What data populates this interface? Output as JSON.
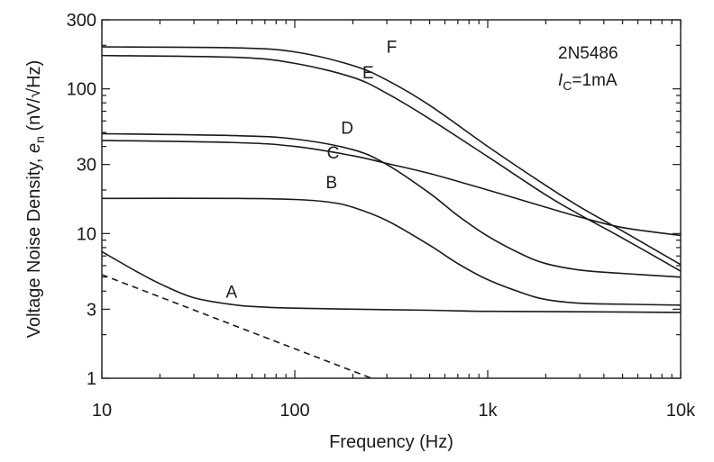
{
  "chart_data": {
    "type": "line",
    "xlabel": "Frequency (Hz)",
    "ylabel_main": "Voltage Noise Density, ",
    "ylabel_var": "e",
    "ylabel_sub": "n",
    "ylabel_unit": " (nV/√Hz)",
    "x_scale": "log",
    "y_scale": "log",
    "xlim": [
      10,
      10000
    ],
    "ylim": [
      1,
      300
    ],
    "x_ticks": [
      {
        "value": 10,
        "label": "10"
      },
      {
        "value": 100,
        "label": "100"
      },
      {
        "value": 1000,
        "label": "1k"
      },
      {
        "value": 10000,
        "label": "10k"
      }
    ],
    "y_ticks": [
      {
        "value": 1,
        "label": "1"
      },
      {
        "value": 3,
        "label": "3"
      },
      {
        "value": 10,
        "label": "10"
      },
      {
        "value": 30,
        "label": "30"
      },
      {
        "value": 100,
        "label": "100"
      },
      {
        "value": 300,
        "label": "300"
      }
    ],
    "annotation": {
      "part": "2N5486",
      "cond_var": "I",
      "cond_sub": "C",
      "cond_val": "=1mA"
    },
    "grid": false,
    "series": [
      {
        "name": "A",
        "style": "solid",
        "label_at": [
          47,
          3.6
        ],
        "x": [
          10,
          15,
          20,
          30,
          50,
          70,
          100,
          200,
          500,
          1000,
          3000,
          10000
        ],
        "y": [
          7.5,
          5.5,
          4.5,
          3.6,
          3.2,
          3.1,
          3.05,
          3.0,
          2.95,
          2.9,
          2.88,
          2.85
        ]
      },
      {
        "name": "B",
        "style": "solid",
        "label_at": [
          155,
          20.5
        ],
        "x": [
          10,
          50,
          100,
          150,
          200,
          300,
          500,
          700,
          1000,
          1500,
          2000,
          3000,
          5000,
          10000
        ],
        "y": [
          17.5,
          17.5,
          17.2,
          16.5,
          15.2,
          12.3,
          8.3,
          6.2,
          4.8,
          3.9,
          3.5,
          3.3,
          3.25,
          3.2
        ]
      },
      {
        "name": "C",
        "style": "solid",
        "label_at": [
          158,
          33
        ],
        "x": [
          10,
          50,
          100,
          200,
          300,
          500,
          1000,
          2000,
          3000,
          5000,
          10000
        ],
        "y": [
          44,
          42.5,
          40,
          34.5,
          30.5,
          26,
          20,
          15.2,
          13,
          11,
          9.7
        ]
      },
      {
        "name": "D",
        "style": "solid",
        "label_at": [
          187,
          49
        ],
        "x": [
          10,
          50,
          100,
          200,
          300,
          500,
          700,
          1000,
          1500,
          2000,
          3000,
          5000,
          10000
        ],
        "y": [
          49,
          47.5,
          45,
          38,
          30,
          19,
          13.3,
          9.6,
          7.2,
          6.2,
          5.6,
          5.3,
          5.0
        ]
      },
      {
        "name": "E",
        "style": "solid",
        "label_at": [
          240,
          118
        ],
        "x": [
          10,
          50,
          100,
          200,
          300,
          500,
          1000,
          2000,
          3000,
          5000,
          10000
        ],
        "y": [
          170,
          165,
          150,
          120,
          93,
          62,
          34,
          18.5,
          13.5,
          9.3,
          5.5
        ]
      },
      {
        "name": "F",
        "style": "solid",
        "label_at": [
          318,
          178
        ],
        "x": [
          10,
          50,
          100,
          200,
          300,
          500,
          1000,
          2000,
          3000,
          5000,
          10000
        ],
        "y": [
          195,
          192,
          180,
          145,
          115,
          77,
          40,
          21.5,
          15.3,
          10.4,
          6.1
        ]
      },
      {
        "style": "dashed",
        "x": [
          10,
          250
        ],
        "y": [
          5.2,
          1.0
        ]
      }
    ]
  }
}
